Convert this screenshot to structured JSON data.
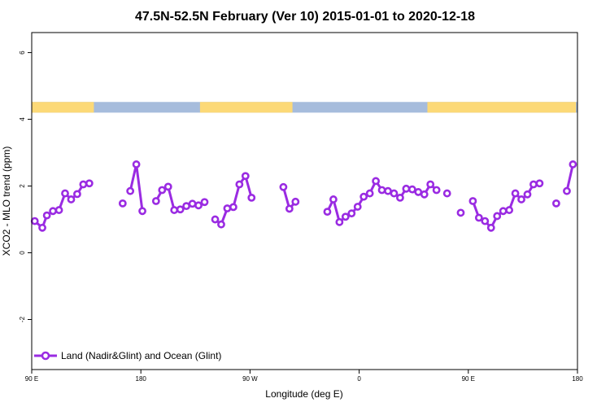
{
  "chart_data": {
    "type": "line",
    "title": "47.5N-52.5N February (Ver 10)   2015-01-01 to 2020-12-18",
    "xlabel": "Longitude (deg E)",
    "ylabel": "XCO2 - MLO trend (ppm)",
    "xlim": [
      90,
      450
    ],
    "ylim": [
      -3.5,
      6.6
    ],
    "x_ticks": [
      {
        "value": 90,
        "label": "90 E"
      },
      {
        "value": 162,
        "label": "180"
      },
      {
        "value": 234,
        "label": "90 W"
      },
      {
        "value": 306,
        "label": "0"
      },
      {
        "value": 378,
        "label": "90 E"
      },
      {
        "value": 450,
        "label": "180"
      }
    ],
    "y_ticks": [
      {
        "value": -2,
        "label": "-2"
      },
      {
        "value": 0,
        "label": "0"
      },
      {
        "value": 2,
        "label": "2"
      },
      {
        "value": 4,
        "label": "4"
      },
      {
        "value": 6,
        "label": "6"
      }
    ],
    "series": [
      {
        "name": "Land (Nadir&Glint) and Ocean (Glint)",
        "color": "#9a2be2",
        "segments": [
          [
            [
              92,
              0.95
            ],
            [
              97,
              0.75
            ],
            [
              100,
              1.12
            ],
            [
              104,
              1.25
            ],
            [
              108,
              1.28
            ],
            [
              112,
              1.78
            ],
            [
              116,
              1.6
            ],
            [
              120,
              1.76
            ],
            [
              124,
              2.05
            ],
            [
              128,
              2.08
            ]
          ],
          [
            [
              150,
              1.48
            ]
          ],
          [
            [
              155,
              1.85
            ],
            [
              159,
              2.65
            ],
            [
              163,
              1.25
            ]
          ],
          [
            [
              172,
              1.55
            ],
            [
              176,
              1.88
            ],
            [
              180,
              1.98
            ],
            [
              184,
              1.28
            ],
            [
              188,
              1.3
            ],
            [
              192,
              1.4
            ],
            [
              196,
              1.47
            ],
            [
              200,
              1.42
            ],
            [
              204,
              1.52
            ]
          ],
          [
            [
              211,
              1.0
            ],
            [
              215,
              0.85
            ],
            [
              219,
              1.33
            ],
            [
              223,
              1.37
            ],
            [
              227,
              2.05
            ],
            [
              231,
              2.3
            ],
            [
              235,
              1.65
            ]
          ],
          [
            [
              256,
              1.97
            ],
            [
              260,
              1.32
            ],
            [
              264,
              1.53
            ]
          ],
          [
            [
              285,
              1.23
            ],
            [
              289,
              1.6
            ],
            [
              293,
              0.92
            ],
            [
              297,
              1.08
            ],
            [
              301,
              1.18
            ],
            [
              305,
              1.38
            ],
            [
              309,
              1.68
            ],
            [
              313,
              1.78
            ],
            [
              317,
              2.15
            ],
            [
              321,
              1.88
            ],
            [
              325,
              1.85
            ],
            [
              329,
              1.78
            ],
            [
              333,
              1.65
            ],
            [
              337,
              1.92
            ],
            [
              341,
              1.9
            ],
            [
              345,
              1.82
            ],
            [
              349,
              1.75
            ],
            [
              353,
              2.05
            ],
            [
              357,
              1.88
            ]
          ],
          [
            [
              364,
              1.78
            ]
          ],
          [
            [
              373,
              1.2
            ]
          ],
          [
            [
              381,
              1.55
            ],
            [
              385,
              1.05
            ],
            [
              389,
              0.95
            ],
            [
              393,
              0.75
            ],
            [
              397,
              1.1
            ],
            [
              401,
              1.25
            ],
            [
              405,
              1.28
            ],
            [
              409,
              1.78
            ],
            [
              413,
              1.6
            ],
            [
              417,
              1.75
            ],
            [
              421,
              2.05
            ],
            [
              425,
              2.08
            ]
          ],
          [
            [
              436,
              1.48
            ]
          ],
          [
            [
              443,
              1.85
            ],
            [
              447,
              2.65
            ]
          ]
        ]
      }
    ],
    "surface_strip": {
      "y_range": [
        4.2,
        4.52
      ],
      "land_color": "#fcd977",
      "ocean_color": "#a6bcdc",
      "land_ranges": [
        [
          90,
          131
        ],
        [
          201,
          262
        ],
        [
          351,
          449
        ]
      ]
    },
    "grid": false,
    "legend": {
      "position": "bottom-left"
    }
  }
}
